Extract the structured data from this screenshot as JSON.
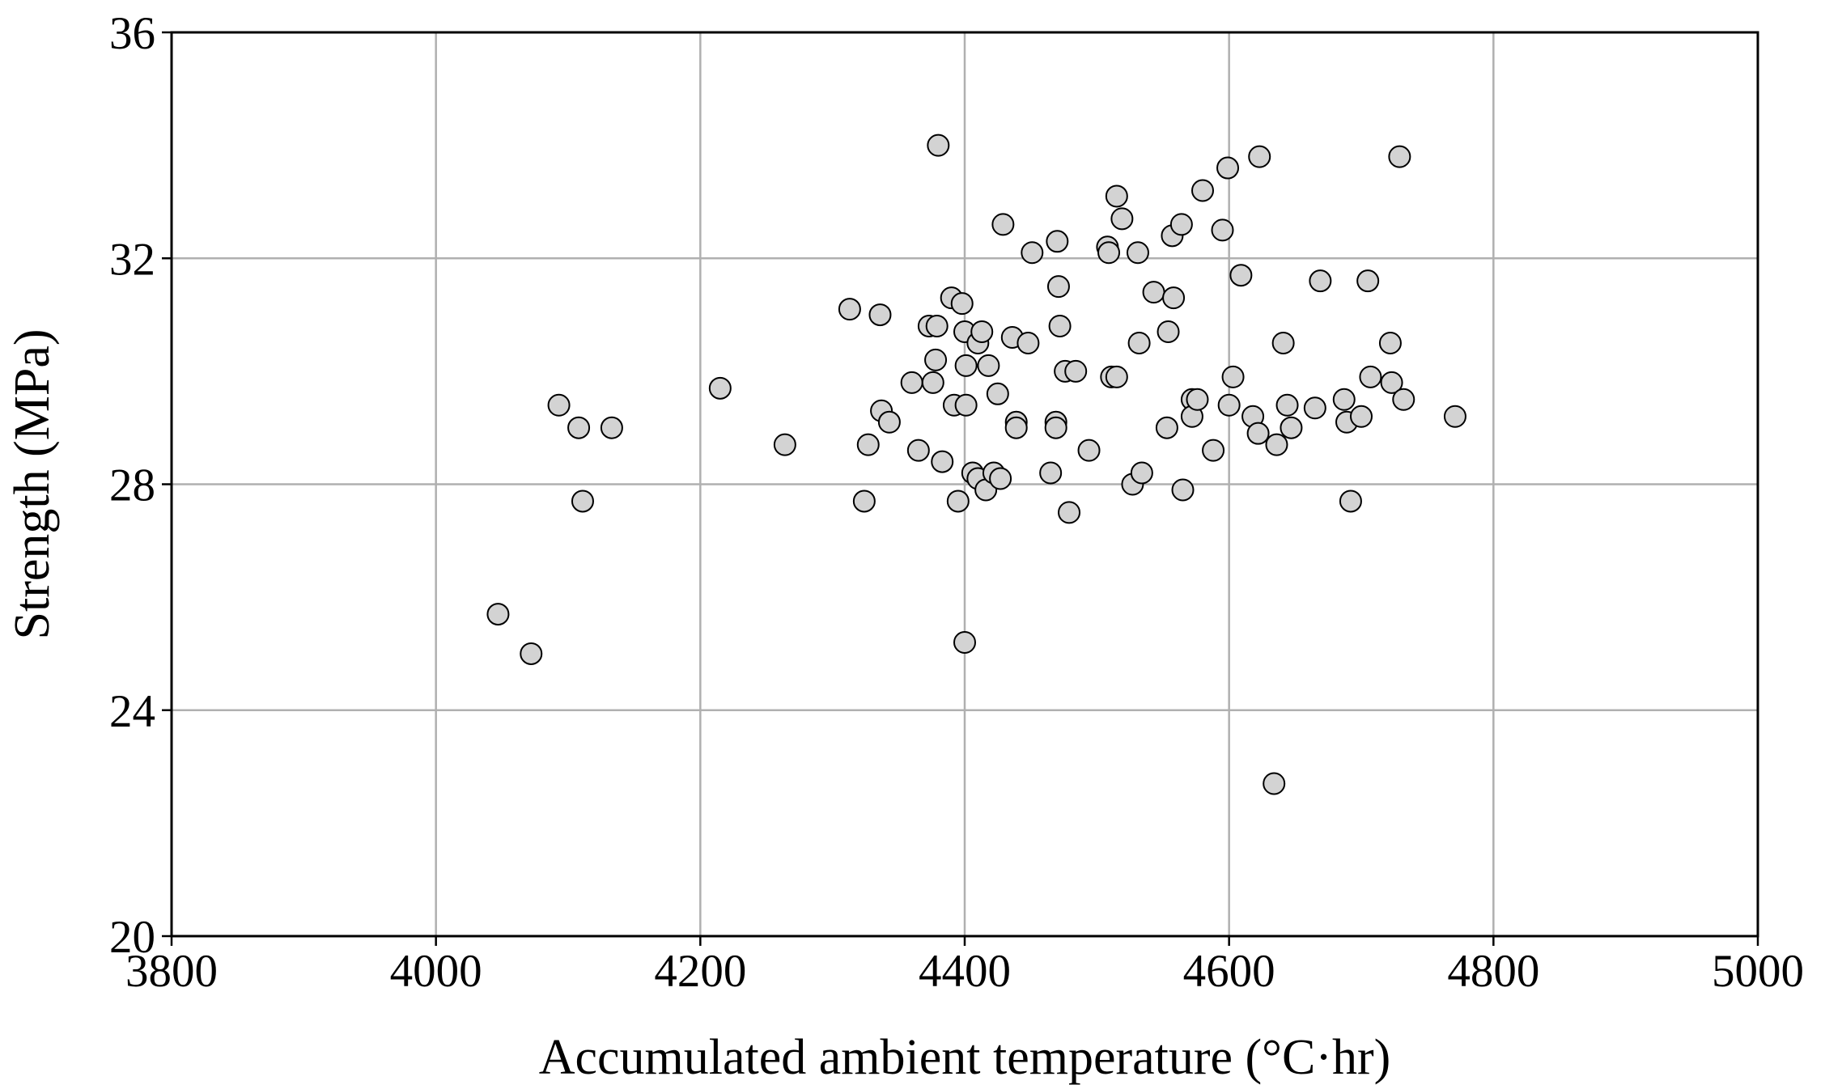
{
  "chart_data": {
    "type": "scatter",
    "xlabel": "Accumulated ambient temperature (°C·hr)",
    "ylabel": "Strength (MPa)",
    "xlim": [
      3800,
      5000
    ],
    "ylim": [
      20,
      36
    ],
    "xticks": [
      3800,
      4000,
      4200,
      4400,
      4600,
      4800,
      5000
    ],
    "yticks": [
      20,
      24,
      28,
      32,
      36
    ],
    "grid": true,
    "marker_color": "#d3d3d3",
    "marker_edge_color": "#000000",
    "points": [
      [
        4047,
        25.7
      ],
      [
        4072,
        25.0
      ],
      [
        4093,
        29.4
      ],
      [
        4108,
        29.0
      ],
      [
        4111,
        27.7
      ],
      [
        4133,
        29.0
      ],
      [
        4215,
        29.7
      ],
      [
        4264,
        28.7
      ],
      [
        4313,
        31.1
      ],
      [
        4324,
        27.7
      ],
      [
        4327,
        28.7
      ],
      [
        4336,
        31.0
      ],
      [
        4337,
        29.3
      ],
      [
        4343,
        29.1
      ],
      [
        4360,
        29.8
      ],
      [
        4365,
        28.6
      ],
      [
        4373,
        30.8
      ],
      [
        4376,
        29.8
      ],
      [
        4378,
        30.2
      ],
      [
        4379,
        30.8
      ],
      [
        4380,
        34.0
      ],
      [
        4383,
        28.4
      ],
      [
        4390,
        31.3
      ],
      [
        4392,
        29.4
      ],
      [
        4395,
        27.7
      ],
      [
        4398,
        31.2
      ],
      [
        4400,
        30.7
      ],
      [
        4400,
        25.2
      ],
      [
        4401,
        30.1
      ],
      [
        4401,
        29.4
      ],
      [
        4406,
        28.2
      ],
      [
        4410,
        30.5
      ],
      [
        4410,
        28.1
      ],
      [
        4413,
        30.7
      ],
      [
        4416,
        27.9
      ],
      [
        4418,
        30.1
      ],
      [
        4422,
        28.2
      ],
      [
        4425,
        29.6
      ],
      [
        4427,
        28.1
      ],
      [
        4429,
        32.6
      ],
      [
        4436,
        30.6
      ],
      [
        4439,
        29.1
      ],
      [
        4439,
        29.0
      ],
      [
        4448,
        30.5
      ],
      [
        4451,
        32.1
      ],
      [
        4465,
        28.2
      ],
      [
        4469,
        29.1
      ],
      [
        4469,
        29.0
      ],
      [
        4470,
        32.3
      ],
      [
        4471,
        31.5
      ],
      [
        4472,
        30.8
      ],
      [
        4476,
        30.0
      ],
      [
        4479,
        27.5
      ],
      [
        4484,
        30.0
      ],
      [
        4494,
        28.6
      ],
      [
        4508,
        32.2
      ],
      [
        4509,
        32.1
      ],
      [
        4511,
        29.9
      ],
      [
        4515,
        33.1
      ],
      [
        4515,
        29.9
      ],
      [
        4519,
        32.7
      ],
      [
        4527,
        28.0
      ],
      [
        4531,
        32.1
      ],
      [
        4532,
        30.5
      ],
      [
        4534,
        28.2
      ],
      [
        4543,
        31.4
      ],
      [
        4553,
        29.0
      ],
      [
        4554,
        30.7
      ],
      [
        4557,
        32.4
      ],
      [
        4558,
        31.3
      ],
      [
        4564,
        32.6
      ],
      [
        4565,
        27.9
      ],
      [
        4572,
        29.5
      ],
      [
        4572,
        29.2
      ],
      [
        4576,
        29.5
      ],
      [
        4580,
        33.2
      ],
      [
        4588,
        28.6
      ],
      [
        4595,
        32.5
      ],
      [
        4599,
        33.6
      ],
      [
        4600,
        29.4
      ],
      [
        4603,
        29.9
      ],
      [
        4609,
        31.7
      ],
      [
        4618,
        29.2
      ],
      [
        4622,
        28.9
      ],
      [
        4623,
        33.8
      ],
      [
        4634,
        22.7
      ],
      [
        4636,
        28.7
      ],
      [
        4641,
        30.5
      ],
      [
        4644,
        29.4
      ],
      [
        4647,
        29.0
      ],
      [
        4665,
        29.35
      ],
      [
        4669,
        31.6
      ],
      [
        4687,
        29.5
      ],
      [
        4689,
        29.1
      ],
      [
        4692,
        27.7
      ],
      [
        4700,
        29.2
      ],
      [
        4705,
        31.6
      ],
      [
        4707,
        29.9
      ],
      [
        4722,
        30.5
      ],
      [
        4723,
        29.8
      ],
      [
        4729,
        33.8
      ],
      [
        4732,
        29.5
      ],
      [
        4771,
        29.2
      ]
    ]
  }
}
